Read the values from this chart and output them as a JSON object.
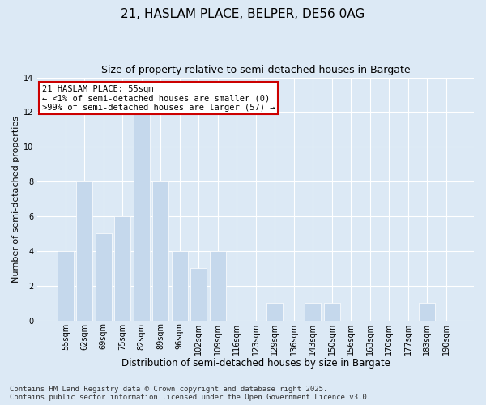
{
  "title_line1": "21, HASLAM PLACE, BELPER, DE56 0AG",
  "title_line2": "Size of property relative to semi-detached houses in Bargate",
  "xlabel": "Distribution of semi-detached houses by size in Bargate",
  "ylabel": "Number of semi-detached properties",
  "categories": [
    "55sqm",
    "62sqm",
    "69sqm",
    "75sqm",
    "82sqm",
    "89sqm",
    "96sqm",
    "102sqm",
    "109sqm",
    "116sqm",
    "123sqm",
    "129sqm",
    "136sqm",
    "143sqm",
    "150sqm",
    "156sqm",
    "163sqm",
    "170sqm",
    "177sqm",
    "183sqm",
    "190sqm"
  ],
  "values": [
    4,
    8,
    5,
    6,
    12,
    8,
    4,
    3,
    4,
    0,
    0,
    1,
    0,
    1,
    1,
    0,
    0,
    0,
    0,
    1,
    0
  ],
  "bar_color": "#c5d8ec",
  "bar_edgecolor": "#ffffff",
  "highlight_box_color": "#cc0000",
  "annotation_title": "21 HASLAM PLACE: 55sqm",
  "annotation_line2": "← <1% of semi-detached houses are smaller (0)",
  "annotation_line3": ">99% of semi-detached houses are larger (57) →",
  "ylim": [
    0,
    14
  ],
  "yticks": [
    0,
    2,
    4,
    6,
    8,
    10,
    12,
    14
  ],
  "background_color": "#dce9f5",
  "plot_bg_color": "#dce9f5",
  "grid_color": "#ffffff",
  "footer_line1": "Contains HM Land Registry data © Crown copyright and database right 2025.",
  "footer_line2": "Contains public sector information licensed under the Open Government Licence v3.0.",
  "title_fontsize": 11,
  "subtitle_fontsize": 9,
  "xlabel_fontsize": 8.5,
  "ylabel_fontsize": 8,
  "tick_fontsize": 7,
  "annotation_fontsize": 7.5,
  "footer_fontsize": 6.5
}
